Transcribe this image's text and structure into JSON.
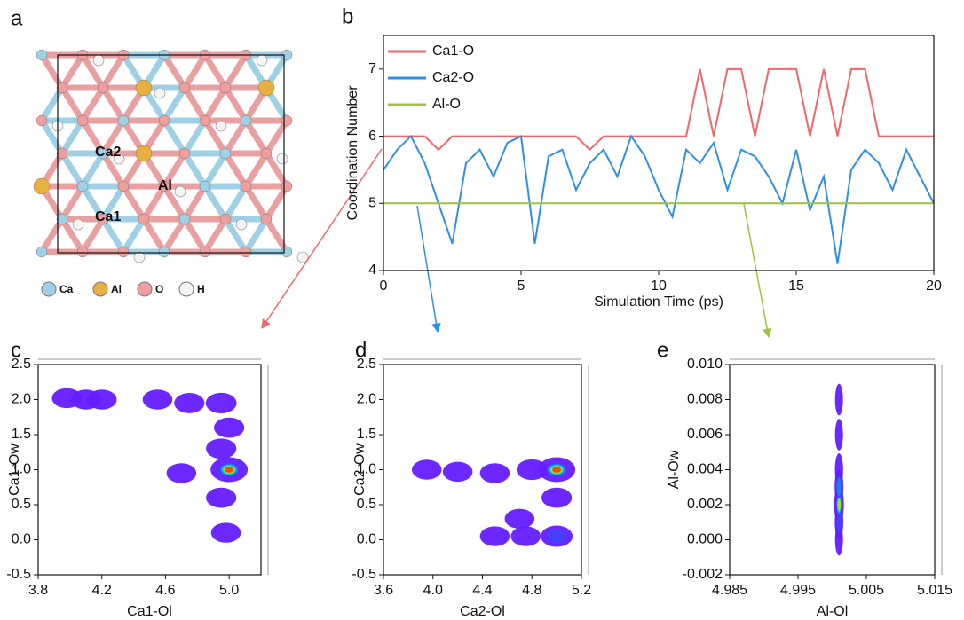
{
  "structure": {
    "panel": "a",
    "site_labels": [
      "Ca2",
      "Al",
      "Ca1"
    ],
    "legend": [
      "Ca",
      "Al",
      "O",
      "H"
    ]
  },
  "chart_data": [
    {
      "type": "line",
      "panel": "b",
      "xlabel": "Simulation Time (ps)",
      "ylabel": "Coordination Number",
      "x": [
        0,
        0.5,
        1,
        1.5,
        2,
        2.5,
        3,
        3.5,
        4,
        4.5,
        5,
        5.5,
        6,
        6.5,
        7,
        7.5,
        8,
        8.5,
        9,
        9.5,
        10,
        10.5,
        11,
        11.5,
        12,
        12.5,
        13,
        13.5,
        14,
        14.5,
        15,
        15.5,
        16,
        16.5,
        17,
        17.5,
        18,
        18.5,
        19,
        19.5,
        20
      ],
      "series": [
        {
          "name": "Ca1-O",
          "color": "#f0666a",
          "values": [
            6,
            6,
            6,
            6,
            5.8,
            6,
            6,
            6,
            6,
            6,
            6,
            6,
            6,
            6,
            6,
            5.8,
            6,
            6,
            6,
            6,
            6,
            6,
            6,
            7,
            6,
            7,
            7,
            6,
            7,
            7,
            7,
            6,
            7,
            6,
            7,
            7,
            6,
            6,
            6,
            6,
            6
          ]
        },
        {
          "name": "Ca2-O",
          "color": "#2f8fe6",
          "values": [
            5.5,
            5.8,
            6,
            5.6,
            5,
            4.4,
            5.6,
            5.8,
            5.4,
            5.9,
            6,
            4.4,
            5.7,
            5.8,
            5.2,
            5.6,
            5.8,
            5.4,
            6,
            5.7,
            5.2,
            4.8,
            5.8,
            5.6,
            5.9,
            5.2,
            5.8,
            5.7,
            5.4,
            5,
            5.8,
            4.9,
            5.4,
            4.1,
            5.5,
            5.8,
            5.6,
            5.2,
            5.8,
            5.4,
            5
          ]
        },
        {
          "name": "Al-O",
          "color": "#9cc33a",
          "values": [
            5,
            5,
            5,
            5,
            5,
            5,
            5,
            5,
            5,
            5,
            5,
            5,
            5,
            5,
            5,
            5,
            5,
            5,
            5,
            5,
            5,
            5,
            5,
            5,
            5,
            5,
            5,
            5,
            5,
            5,
            5,
            5,
            5,
            5,
            5,
            5,
            5,
            5,
            5,
            5,
            5
          ]
        }
      ],
      "xlim": [
        0,
        20
      ],
      "xticks": [
        0,
        5,
        10,
        15,
        20
      ],
      "ylim": [
        4,
        7.5
      ],
      "yticks": [
        4,
        5,
        6,
        7
      ]
    },
    {
      "type": "density",
      "panel": "c",
      "xlabel": "Ca1-Ol",
      "ylabel": "Ca1-Ow",
      "x": [
        3.98,
        4.1,
        4.2,
        4.55,
        4.75,
        4.95,
        5.0,
        4.95,
        5.0,
        4.95,
        4.98,
        4.7
      ],
      "y": [
        2.02,
        2.0,
        2.0,
        2.0,
        1.95,
        1.95,
        1.6,
        1.3,
        1.0,
        0.6,
        0.1,
        0.95
      ],
      "values": [
        0.3,
        0.3,
        0.3,
        0.3,
        0.35,
        0.4,
        0.35,
        0.35,
        1.0,
        0.35,
        0.3,
        0.3
      ],
      "xlim": [
        3.8,
        5.2
      ],
      "xticks": [
        3.8,
        4.2,
        4.6,
        {
          "value": 5,
          "label": "5.0"
        }
      ],
      "ylim": [
        -0.5,
        2.5
      ],
      "yticks": [
        -0.5,
        {
          "value": 0,
          "label": "0.0"
        },
        0.5,
        {
          "value": 1,
          "label": "1.0"
        },
        1.5,
        {
          "value": 2,
          "label": "2.0"
        },
        2.5
      ]
    },
    {
      "type": "density",
      "panel": "d",
      "xlabel": "Ca2-Ol",
      "ylabel": "Ca2-Ow",
      "x": [
        3.95,
        4.2,
        4.5,
        4.8,
        5.0,
        5.0,
        5.0,
        4.5,
        4.7,
        4.75
      ],
      "y": [
        1.0,
        0.97,
        0.95,
        1.0,
        1.0,
        0.6,
        0.05,
        0.05,
        0.3,
        0.05
      ],
      "values": [
        0.3,
        0.3,
        0.3,
        0.4,
        1.0,
        0.35,
        0.5,
        0.3,
        0.3,
        0.3
      ],
      "xlim": [
        3.6,
        5.2
      ],
      "xticks": [
        3.6,
        {
          "value": 4,
          "label": "4.0"
        },
        4.4,
        4.8,
        5.2
      ],
      "ylim": [
        -0.5,
        2.5
      ],
      "yticks": [
        -0.5,
        {
          "value": 0,
          "label": "0.0"
        },
        0.5,
        {
          "value": 1,
          "label": "1.0"
        },
        1.5,
        {
          "value": 2,
          "label": "2.0"
        },
        2.5
      ]
    },
    {
      "type": "density",
      "panel": "e",
      "xlabel": "Al-Ol",
      "ylabel": "Al-Ow",
      "x": [
        5.001,
        5.001,
        5.001,
        5.001,
        5.001,
        5.001,
        5.001
      ],
      "y": [
        0.0,
        0.001,
        0.002,
        0.003,
        0.004,
        0.006,
        0.008
      ],
      "values": [
        0.3,
        0.5,
        0.9,
        0.6,
        0.4,
        0.3,
        0.3
      ],
      "xlim": [
        4.985,
        5.015
      ],
      "xticks": [
        4.985,
        4.995,
        5.005,
        5.015
      ],
      "ylim": [
        -0.002,
        0.01
      ],
      "yticks": [
        -0.002,
        {
          "value": 0,
          "label": "0.000"
        },
        0.002,
        0.004,
        0.006,
        0.008,
        {
          "value": 0.01,
          "label": "0.010"
        }
      ]
    }
  ]
}
